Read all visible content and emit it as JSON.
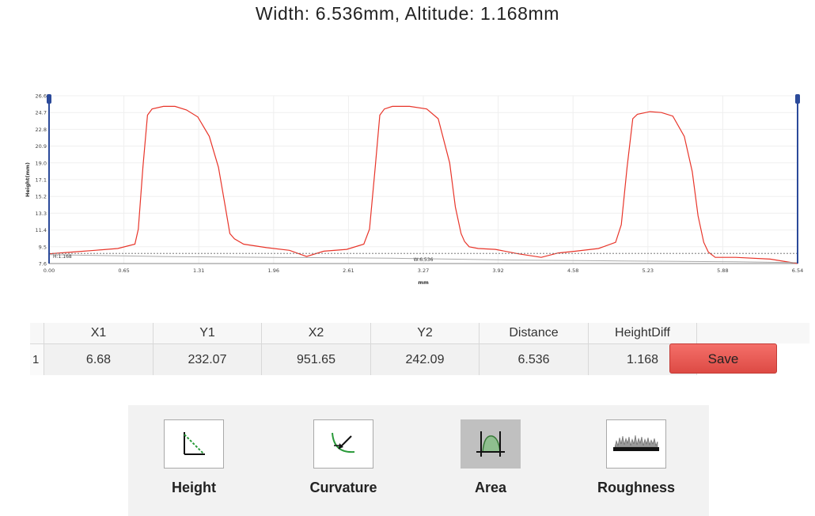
{
  "title": "Width: 6.536mm, Altitude: 1.168mm",
  "chart_data": {
    "type": "line",
    "ylabel": "Height(mm)",
    "xlabel": "mm",
    "xlim": [
      0,
      6.54
    ],
    "ylim": [
      7.6,
      26.6
    ],
    "yticks": [
      "26.6",
      "24.7",
      "22.8",
      "20.9",
      "19.0",
      "17.1",
      "15.2",
      "13.3",
      "11.4",
      "9.5",
      "7.6"
    ],
    "xticks": [
      "0.00",
      "0.65",
      "1.31",
      "1.96",
      "2.61",
      "3.27",
      "3.92",
      "4.58",
      "5.23",
      "5.88",
      "6.54"
    ],
    "grid": true,
    "series": [
      {
        "color": "#e8352a",
        "x": [
          0.0,
          0.2,
          0.4,
          0.6,
          0.75,
          0.78,
          0.82,
          0.86,
          0.9,
          1.0,
          1.1,
          1.2,
          1.3,
          1.4,
          1.48,
          1.54,
          1.58,
          1.62,
          1.7,
          1.9,
          2.1,
          2.25,
          2.4,
          2.6,
          2.75,
          2.8,
          2.85,
          2.89,
          2.93,
          3.0,
          3.15,
          3.3,
          3.4,
          3.5,
          3.55,
          3.6,
          3.63,
          3.67,
          3.75,
          3.9,
          4.1,
          4.3,
          4.45,
          4.6,
          4.8,
          4.95,
          5.0,
          5.05,
          5.1,
          5.14,
          5.25,
          5.35,
          5.45,
          5.55,
          5.62,
          5.67,
          5.72,
          5.76,
          5.82,
          6.0,
          6.3,
          6.54
        ],
        "y": [
          8.7,
          8.9,
          9.1,
          9.3,
          9.8,
          11.5,
          18.5,
          24.4,
          25.1,
          25.4,
          25.4,
          25.0,
          24.2,
          22.0,
          18.5,
          14.0,
          11.0,
          10.4,
          9.8,
          9.4,
          9.1,
          8.4,
          9.0,
          9.2,
          9.8,
          11.5,
          18.5,
          24.4,
          25.1,
          25.4,
          25.4,
          25.1,
          24.0,
          19.0,
          14.0,
          11.0,
          10.1,
          9.5,
          9.3,
          9.2,
          8.7,
          8.3,
          8.8,
          9.0,
          9.3,
          10.0,
          12.0,
          18.5,
          24.0,
          24.5,
          24.8,
          24.7,
          24.3,
          22.0,
          18.0,
          13.0,
          10.0,
          8.9,
          8.3,
          8.3,
          8.1,
          7.6
        ]
      },
      {
        "color": "#aaaaaa",
        "x": [
          0.0,
          1.0,
          2.0,
          3.0,
          4.0,
          5.0,
          6.0,
          6.54
        ],
        "y": [
          8.6,
          8.4,
          8.3,
          8.2,
          8.0,
          7.9,
          7.8,
          7.7
        ]
      }
    ],
    "reference_line_y": 8.75,
    "annotations": {
      "height_label": "H:1.168",
      "width_label": "W:6.536"
    },
    "cursors_x": [
      0.0,
      6.54
    ]
  },
  "table": {
    "headers": [
      "X1",
      "Y1",
      "X2",
      "Y2",
      "Distance",
      "HeightDiff"
    ],
    "rows": [
      {
        "index": "1",
        "values": [
          "6.68",
          "232.07",
          "951.65",
          "242.09",
          "6.536",
          "1.168"
        ]
      }
    ]
  },
  "save_label": "Save",
  "tools": [
    {
      "label": "Height",
      "icon": "height-tool-icon",
      "active": false
    },
    {
      "label": "Curvature",
      "icon": "curvature-tool-icon",
      "active": false
    },
    {
      "label": "Area",
      "icon": "area-tool-icon",
      "active": true
    },
    {
      "label": "Roughness",
      "icon": "roughness-tool-icon",
      "active": false
    }
  ],
  "colors": {
    "accent": "#e8352a",
    "cursor": "#2b4a9a",
    "save": "#e8524c"
  }
}
